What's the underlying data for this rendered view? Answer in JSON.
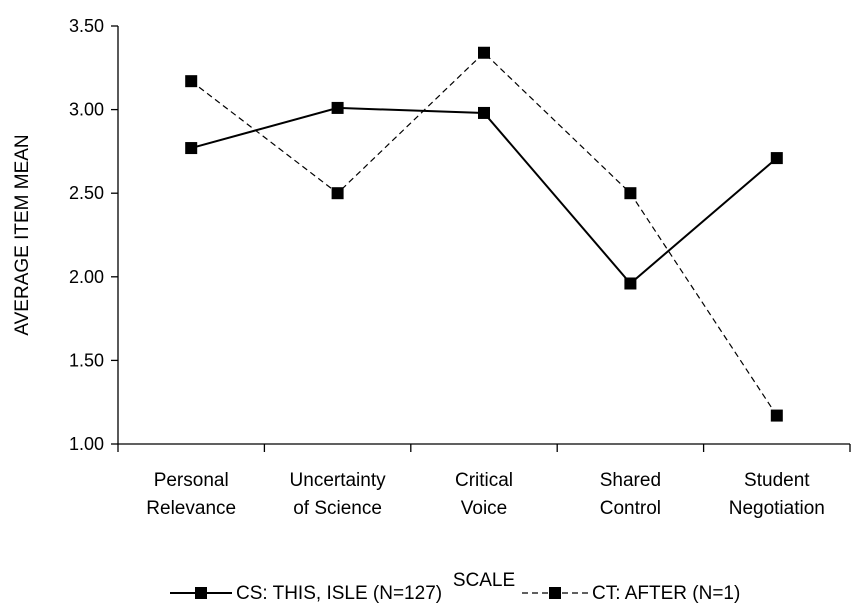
{
  "chart_data": {
    "type": "line",
    "title": "",
    "xlabel": "SCALE",
    "ylabel": "AVERAGE ITEM MEAN",
    "ylim": [
      1.0,
      3.5
    ],
    "yticks": [
      "1.00",
      "1.50",
      "2.00",
      "2.50",
      "3.00",
      "3.50"
    ],
    "ytick_values": [
      1.0,
      1.5,
      2.0,
      2.5,
      3.0,
      3.5
    ],
    "categories": [
      [
        "Personal",
        "Relevance"
      ],
      [
        "Uncertainty",
        "of Science"
      ],
      [
        "Critical",
        "Voice"
      ],
      [
        "Shared",
        "Control"
      ],
      [
        "Student",
        "Negotiation"
      ]
    ],
    "grid": false,
    "legend_position": "bottom",
    "series": [
      {
        "name": "CS: THIS, ISLE (N=127)",
        "values": [
          2.77,
          3.01,
          2.98,
          1.96,
          2.71
        ],
        "line_style": "solid",
        "color": "#000000"
      },
      {
        "name": "CT: AFTER (N=1)",
        "values": [
          3.17,
          2.5,
          3.34,
          2.5,
          1.17
        ],
        "line_style": "dashed",
        "color": "#000000"
      }
    ]
  }
}
